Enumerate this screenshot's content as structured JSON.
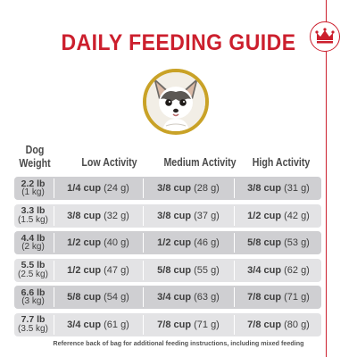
{
  "title": "DAILY FEEDING GUIDE",
  "header": {
    "weight": [
      "Dog",
      "Weight"
    ],
    "low": "Low Activity",
    "medium": "Medium Activity",
    "high": "High Activity"
  },
  "rows": [
    {
      "lb": "2.2 lb",
      "kg": "(1 kg)",
      "low": [
        "1/4 cup",
        "(24 g)"
      ],
      "medium": [
        "3/8 cup",
        "(28 g)"
      ],
      "high": [
        "3/8 cup",
        "(31 g)"
      ]
    },
    {
      "lb": "3.3 lb",
      "kg": "(1.5 kg)",
      "low": [
        "3/8 cup",
        "(32 g)"
      ],
      "medium": [
        "3/8 cup",
        "(37 g)"
      ],
      "high": [
        "1/2 cup",
        "(42 g)"
      ]
    },
    {
      "lb": "4.4 lb",
      "kg": "(2 kg)",
      "low": [
        "1/2 cup",
        "(40 g)"
      ],
      "medium": [
        "1/2 cup",
        "(46 g)"
      ],
      "high": [
        "5/8 cup",
        "(53 g)"
      ]
    },
    {
      "lb": "5.5 lb",
      "kg": "(2.5 kg)",
      "low": [
        "1/2 cup",
        "(47 g)"
      ],
      "medium": [
        "5/8 cup",
        "(55 g)"
      ],
      "high": [
        "3/4 cup",
        "(62 g)"
      ]
    },
    {
      "lb": "6.6 lb",
      "kg": "(3 kg)",
      "low": [
        "5/8 cup",
        "(54 g)"
      ],
      "medium": [
        "3/4 cup",
        "(63 g)"
      ],
      "high": [
        "7/8 cup",
        "(71 g)"
      ]
    },
    {
      "lb": "7.7 lb",
      "kg": "(3.5 kg)",
      "low": [
        "3/4 cup",
        "(61 g)"
      ],
      "medium": [
        "7/8 cup",
        "(71 g)"
      ],
      "high": [
        "7/8 cup",
        "(80 g)"
      ]
    }
  ],
  "footnote": "Reference back of bag for additional feeding instructions, including mixed feeding",
  "colors": {
    "title": "#cc1f2d",
    "photo_ring": "#c9a227",
    "row_dark": "#cfcfd2",
    "row_light": "#e3e3e5"
  },
  "icons": {
    "brand": "crown-icon",
    "photo": "chihuahua-photo"
  }
}
